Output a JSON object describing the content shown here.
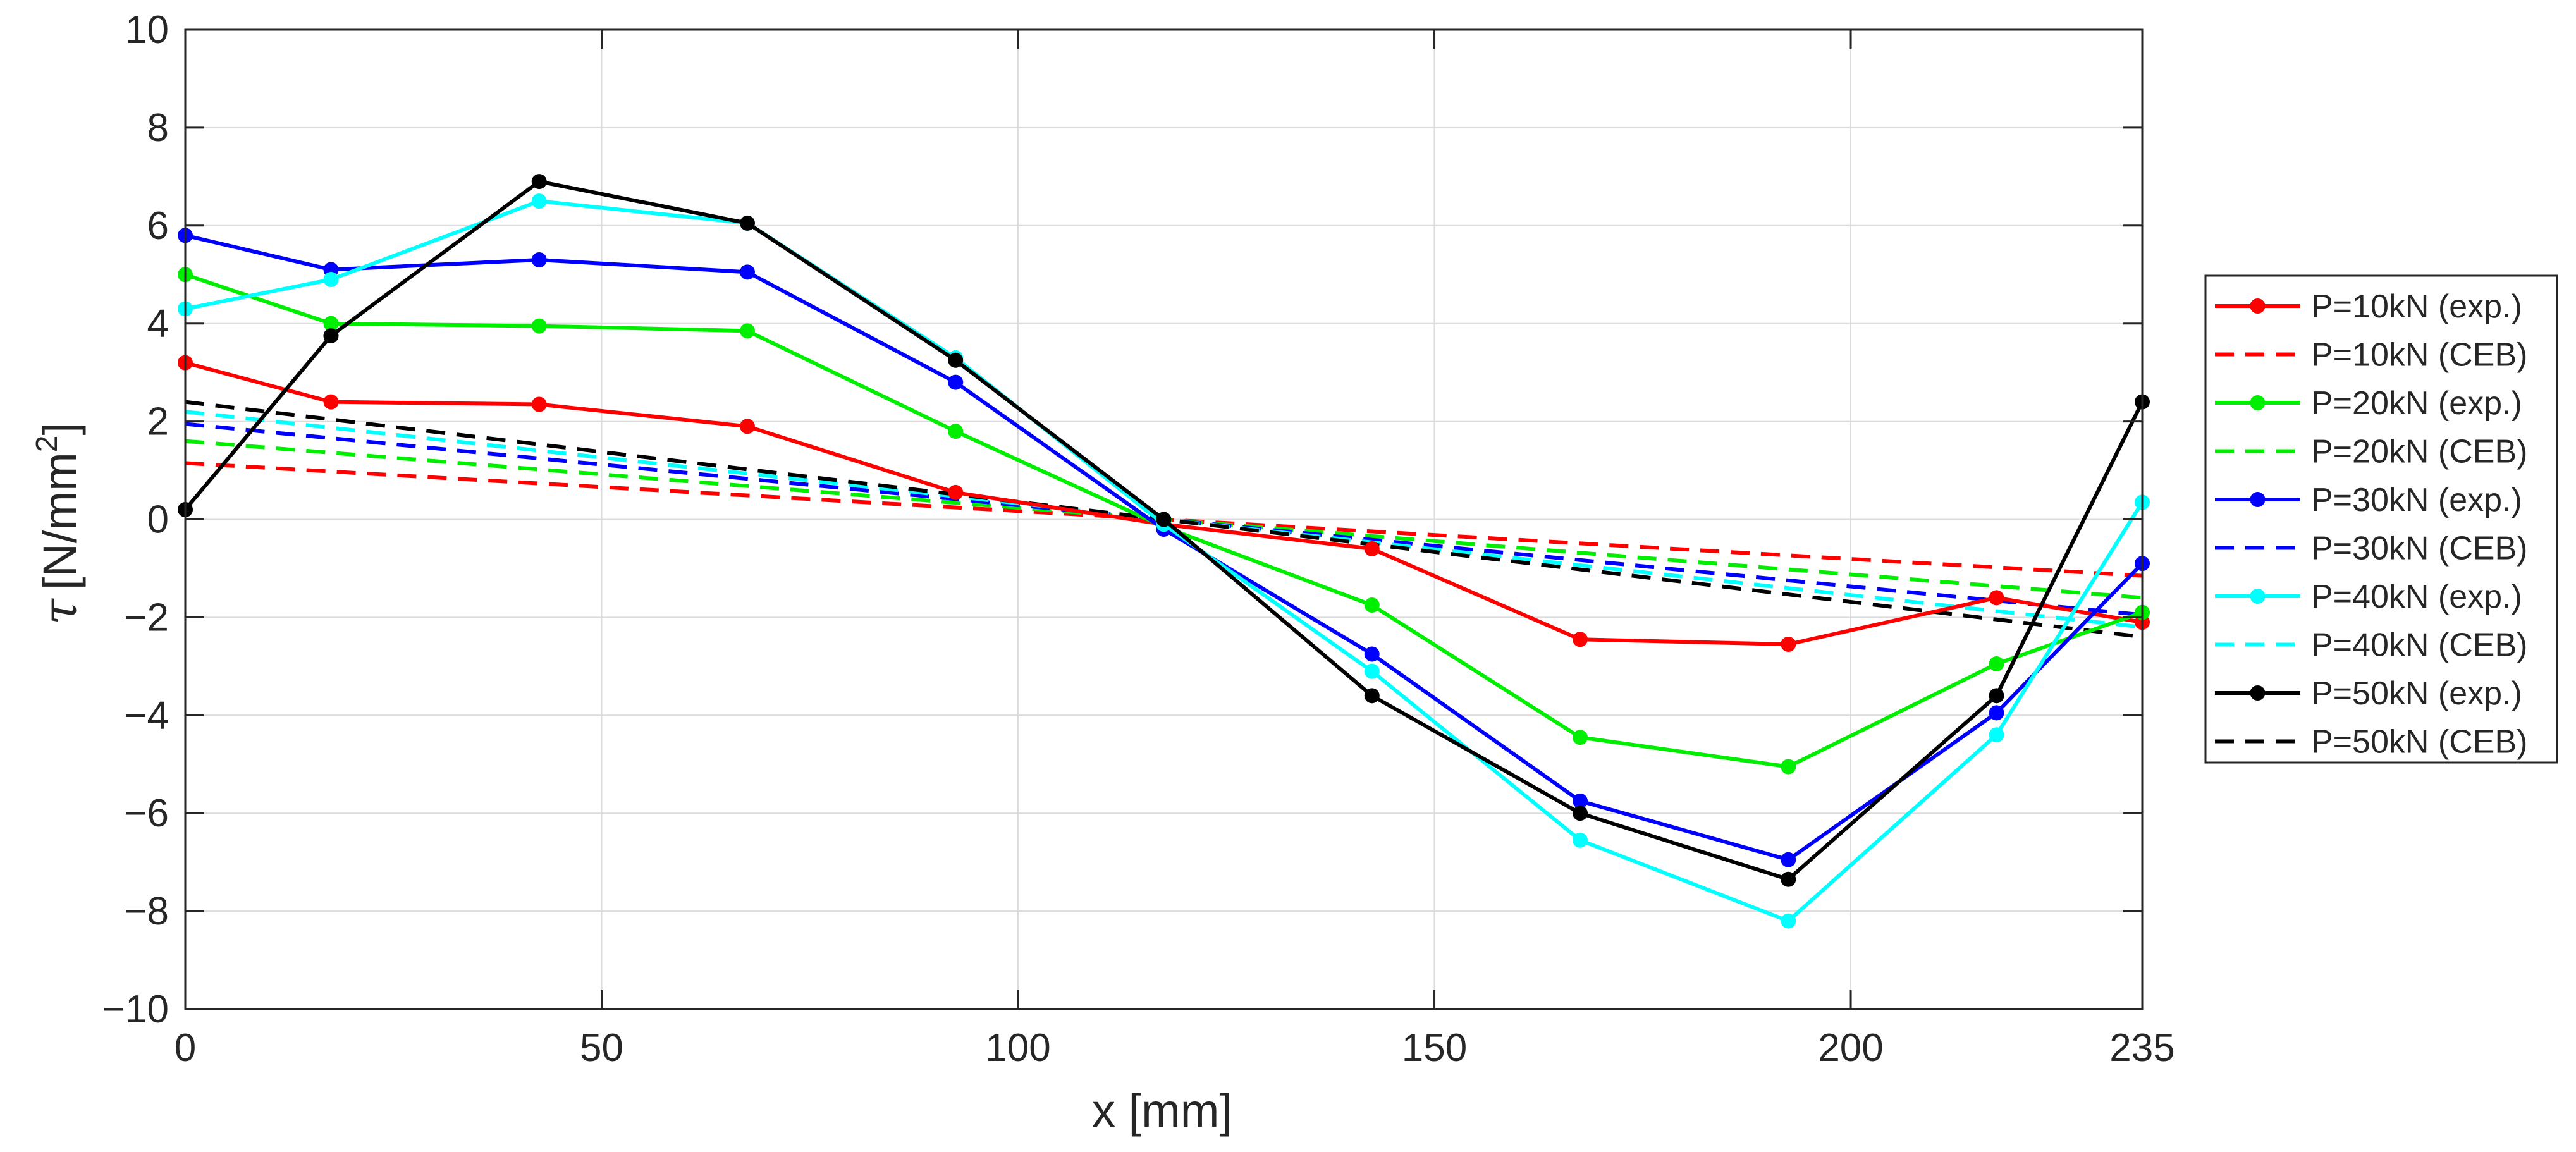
{
  "chart_data": {
    "type": "line",
    "title": "",
    "xlabel": "x [mm]",
    "ylabel": {
      "symbol": "τ",
      "unit": "[N/mm",
      "sup": "2",
      "close": "]"
    },
    "xlim": [
      0,
      235
    ],
    "ylim": [
      -10,
      10
    ],
    "xticks": [
      0,
      50,
      100,
      150,
      200,
      235
    ],
    "xtick_labels": [
      "0",
      "50",
      "100",
      "150",
      "200",
      "235"
    ],
    "yticks": [
      -10,
      -8,
      -6,
      -4,
      -2,
      0,
      2,
      4,
      6,
      8,
      10
    ],
    "ytick_labels": [
      "−10",
      "−8",
      "−6",
      "−4",
      "−2",
      "0",
      "2",
      "4",
      "6",
      "8",
      "10"
    ],
    "grid": true,
    "legend_position": "outside-right",
    "x": [
      0,
      17.5,
      42.5,
      67.5,
      92.5,
      117.5,
      142.5,
      167.5,
      192.5,
      217.5,
      235
    ],
    "series": [
      {
        "name": "P=10kN (exp.)",
        "color": "#ff0000",
        "style": "solid",
        "markers": true,
        "values": [
          3.2,
          2.4,
          2.35,
          1.9,
          0.55,
          -0.1,
          -0.6,
          -2.45,
          -2.55,
          -1.6,
          -2.1
        ]
      },
      {
        "name": "P=10kN (CEB)",
        "color": "#ff0000",
        "style": "dashed",
        "markers": false,
        "x_line": [
          0,
          235
        ],
        "values_line": [
          1.15,
          -1.15
        ]
      },
      {
        "name": "P=20kN (exp.)",
        "color": "#00ee00",
        "style": "solid",
        "markers": true,
        "values": [
          5.0,
          4.0,
          3.95,
          3.85,
          1.8,
          -0.15,
          -1.75,
          -4.45,
          -5.05,
          -2.95,
          -1.9
        ]
      },
      {
        "name": "P=20kN (CEB)",
        "color": "#00ee00",
        "style": "dashed",
        "markers": false,
        "x_line": [
          0,
          235
        ],
        "values_line": [
          1.6,
          -1.6
        ]
      },
      {
        "name": "P=30kN (exp.)",
        "color": "#0000ff",
        "style": "solid",
        "markers": true,
        "values": [
          5.8,
          5.1,
          5.3,
          5.05,
          2.8,
          -0.2,
          -2.75,
          -5.75,
          -6.95,
          -3.95,
          -0.9
        ]
      },
      {
        "name": "P=30kN (CEB)",
        "color": "#0000ff",
        "style": "dashed",
        "markers": false,
        "x_line": [
          0,
          235
        ],
        "values_line": [
          1.95,
          -1.95
        ]
      },
      {
        "name": "P=40kN (exp.)",
        "color": "#00ffff",
        "style": "solid",
        "markers": true,
        "values": [
          4.3,
          4.9,
          6.5,
          6.05,
          3.3,
          -0.1,
          -3.1,
          -6.55,
          -8.2,
          -4.4,
          0.35
        ]
      },
      {
        "name": "P=40kN (CEB)",
        "color": "#00ffff",
        "style": "dashed",
        "markers": false,
        "x_line": [
          0,
          235
        ],
        "values_line": [
          2.2,
          -2.2
        ]
      },
      {
        "name": "P=50kN (exp.)",
        "color": "#000000",
        "style": "solid",
        "markers": true,
        "values": [
          0.2,
          3.75,
          6.9,
          6.05,
          3.25,
          0.0,
          -3.6,
          -6.0,
          -7.35,
          -3.6,
          2.4
        ]
      },
      {
        "name": "P=50kN (CEB)",
        "color": "#000000",
        "style": "dashed",
        "markers": false,
        "x_line": [
          0,
          235
        ],
        "values_line": [
          2.4,
          -2.4
        ]
      }
    ]
  }
}
